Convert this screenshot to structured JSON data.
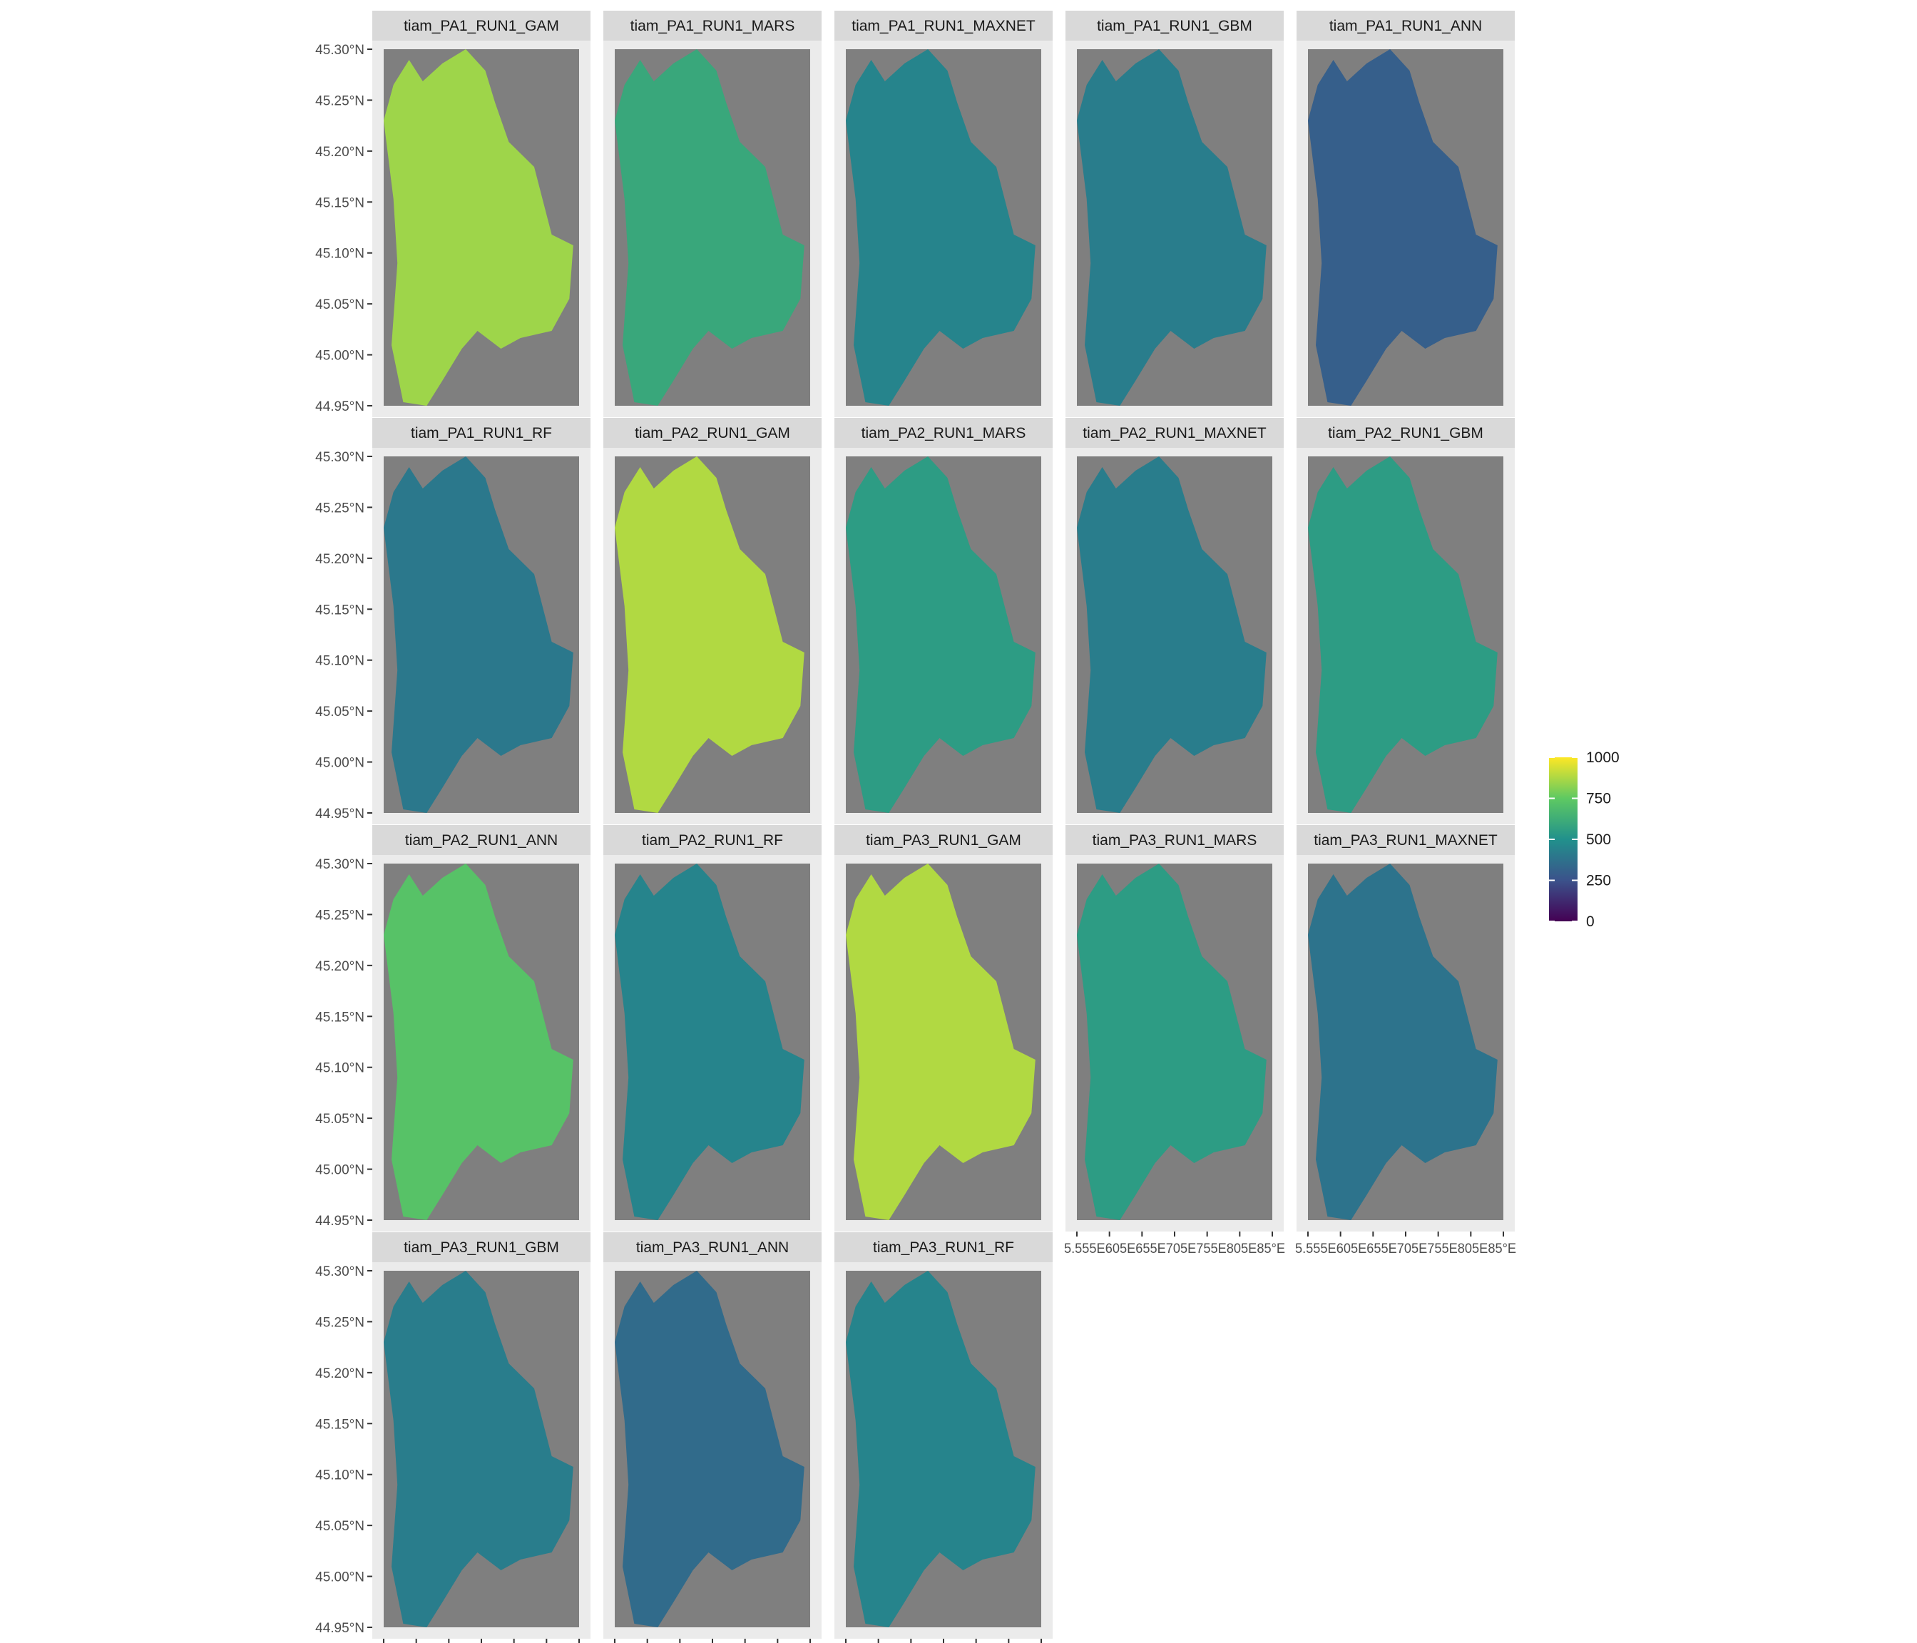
{
  "chart_data": {
    "type": "heatmap",
    "description_kind": "faceted raster maps of model predictions",
    "panels": [
      {
        "title": "tiam_PA1_RUN1_GAM",
        "level": 0.85
      },
      {
        "title": "tiam_PA1_RUN1_MARS",
        "level": 0.6
      },
      {
        "title": "tiam_PA1_RUN1_MAXNET",
        "level": 0.45
      },
      {
        "title": "tiam_PA1_RUN1_GBM",
        "level": 0.42
      },
      {
        "title": "tiam_PA1_RUN1_ANN",
        "level": 0.3
      },
      {
        "title": "tiam_PA1_RUN1_RF",
        "level": 0.4
      },
      {
        "title": "tiam_PA2_RUN1_GAM",
        "level": 0.88
      },
      {
        "title": "tiam_PA2_RUN1_MARS",
        "level": 0.55
      },
      {
        "title": "tiam_PA2_RUN1_MAXNET",
        "level": 0.42
      },
      {
        "title": "tiam_PA2_RUN1_GBM",
        "level": 0.55
      },
      {
        "title": "tiam_PA2_RUN1_ANN",
        "level": 0.72
      },
      {
        "title": "tiam_PA2_RUN1_RF",
        "level": 0.45
      },
      {
        "title": "tiam_PA3_RUN1_GAM",
        "level": 0.88
      },
      {
        "title": "tiam_PA3_RUN1_MARS",
        "level": 0.55
      },
      {
        "title": "tiam_PA3_RUN1_MAXNET",
        "level": 0.38
      },
      {
        "title": "tiam_PA3_RUN1_GBM",
        "level": 0.42
      },
      {
        "title": "tiam_PA3_RUN1_ANN",
        "level": 0.35
      },
      {
        "title": "tiam_PA3_RUN1_RF",
        "level": 0.45
      }
    ],
    "y_ticks": [
      "45.30°N",
      "45.25°N",
      "45.20°N",
      "45.15°N",
      "45.10°N",
      "45.05°N",
      "45.00°N",
      "44.95°N"
    ],
    "x_ticks": [
      "5.55°E",
      "5.60°E",
      "5.65°E",
      "5.70°E",
      "5.75°E",
      "5.80°E",
      "5.85°E"
    ],
    "x_tick_label_text": "5.55°E5.60°E5.65°E5.70°E5.75°E5.80°E5.85°E",
    "x_tick_overlap_text": "5.555E605E655E705E755E805E85°E",
    "ylim": [
      44.95,
      45.3
    ],
    "xlim": [
      5.55,
      5.85
    ],
    "legend": {
      "position": "right",
      "min": 0,
      "max": 1000,
      "breaks": [
        "1000",
        "750",
        "500",
        "250",
        "0"
      ],
      "colormap": [
        "#440154",
        "#3b528b",
        "#21918c",
        "#5ec962",
        "#fde725"
      ]
    },
    "colors": {
      "panel_background": "#7f7f7f",
      "strip_background": "#d9d9d9",
      "outer_background": "#ebebeb"
    }
  }
}
